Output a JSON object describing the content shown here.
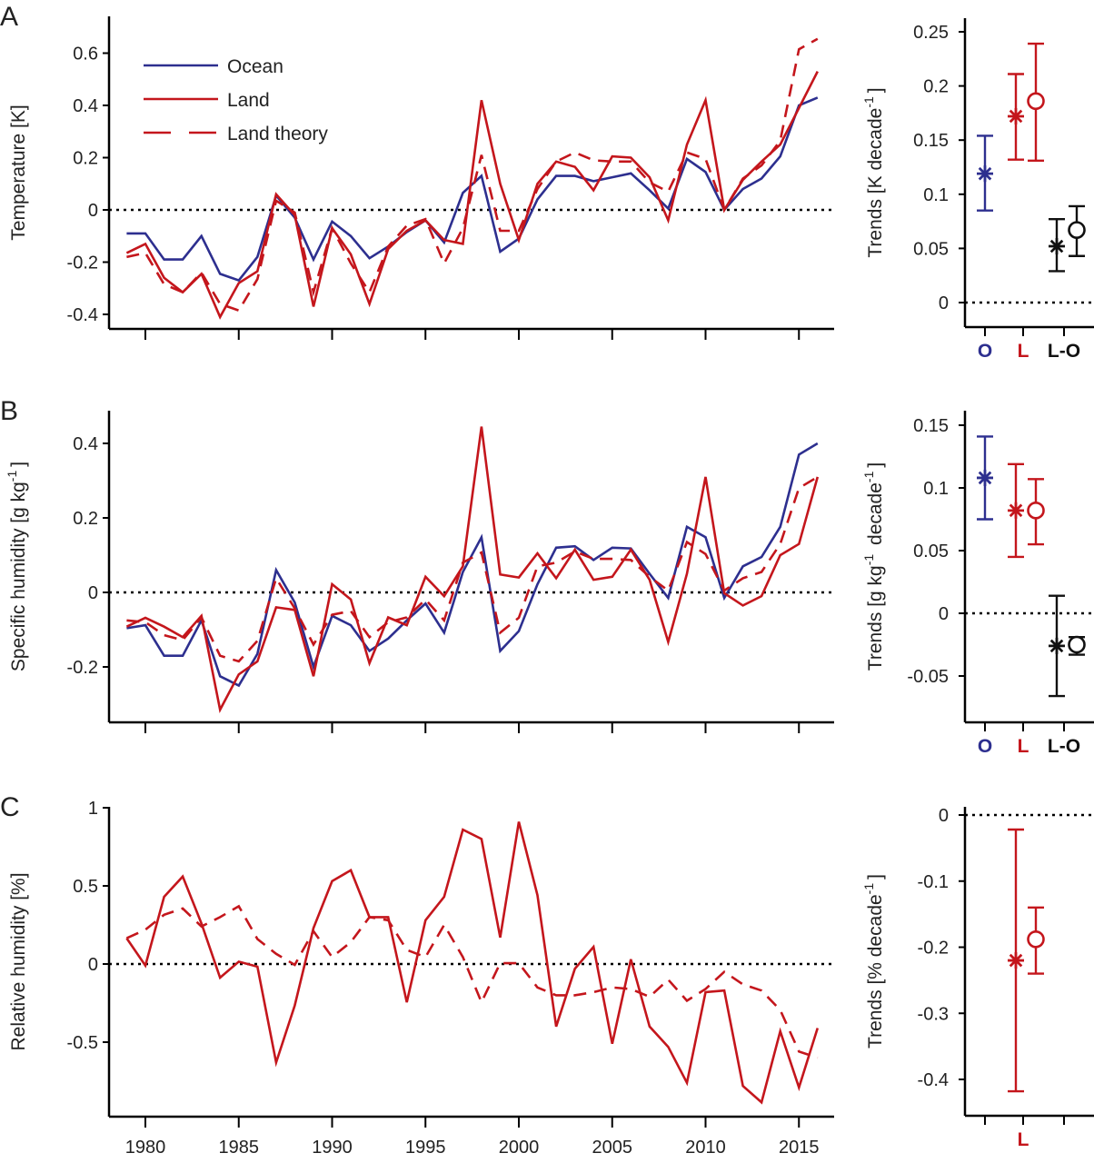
{
  "colors": {
    "ocean": "#2d2f8f",
    "land": "#c4161c",
    "difference": "#111111"
  },
  "panel_letters": [
    "A",
    "B",
    "C"
  ],
  "legend": [
    "Ocean",
    "Land",
    "Land theory"
  ],
  "chart_data": [
    {
      "type": "line",
      "panel": "A",
      "ylabel": "Temperature [K]",
      "ylim": [
        -0.45,
        0.7
      ],
      "yticks": [
        -0.4,
        -0.2,
        0,
        0.2,
        0.4,
        0.6
      ],
      "ytick_labels": [
        "-0.4",
        "-0.2",
        "0",
        "0.2",
        "0.4",
        "0.6"
      ],
      "xlim": [
        1978,
        2017
      ],
      "xticks": [
        1980,
        1985,
        1990,
        1995,
        2000,
        2005,
        2010,
        2015
      ],
      "reference_line": 0,
      "legend_position": "top-left",
      "x": [
        1979,
        1980,
        1981,
        1982,
        1983,
        1984,
        1985,
        1986,
        1987,
        1988,
        1989,
        1990,
        1991,
        1992,
        1993,
        1994,
        1995,
        1996,
        1997,
        1998,
        1999,
        2000,
        2001,
        2002,
        2003,
        2004,
        2005,
        2006,
        2007,
        2008,
        2009,
        2010,
        2011,
        2012,
        2013,
        2014,
        2015,
        2016
      ],
      "series": [
        {
          "name": "Ocean",
          "style": "solid",
          "color": "ocean",
          "values": [
            -0.09,
            -0.09,
            -0.19,
            -0.19,
            -0.1,
            -0.245,
            -0.27,
            -0.18,
            0.055,
            -0.03,
            -0.19,
            -0.045,
            -0.1,
            -0.185,
            -0.14,
            -0.085,
            -0.04,
            -0.125,
            0.065,
            0.13,
            -0.16,
            -0.11,
            0.04,
            0.13,
            0.13,
            0.11,
            0.125,
            0.14,
            0.075,
            0.005,
            0.195,
            0.145,
            0.0,
            0.08,
            0.12,
            0.205,
            0.4,
            0.43
          ]
        },
        {
          "name": "Land",
          "style": "solid",
          "color": "land",
          "values": [
            -0.165,
            -0.13,
            -0.26,
            -0.315,
            -0.245,
            -0.41,
            -0.28,
            -0.235,
            0.06,
            -0.02,
            -0.37,
            -0.07,
            -0.17,
            -0.36,
            -0.15,
            -0.08,
            -0.04,
            -0.115,
            -0.13,
            0.42,
            0.1,
            -0.115,
            0.1,
            0.185,
            0.165,
            0.075,
            0.205,
            0.2,
            0.125,
            -0.04,
            0.25,
            0.42,
            0.0,
            0.115,
            0.185,
            0.25,
            0.39,
            0.53
          ]
        },
        {
          "name": "Land theory",
          "style": "dashed",
          "color": "land",
          "values": [
            -0.18,
            -0.165,
            -0.285,
            -0.315,
            -0.24,
            -0.36,
            -0.385,
            -0.265,
            0.035,
            -0.01,
            -0.315,
            -0.07,
            -0.205,
            -0.315,
            -0.14,
            -0.06,
            -0.035,
            -0.205,
            -0.07,
            0.21,
            -0.08,
            -0.08,
            0.08,
            0.185,
            0.22,
            0.19,
            0.185,
            0.185,
            0.105,
            0.07,
            0.22,
            0.195,
            0.0,
            0.12,
            0.17,
            0.265,
            0.615,
            0.655
          ]
        }
      ]
    },
    {
      "type": "line",
      "panel": "B",
      "ylabel": "Specific humidity [g kg",
      "ylabel_sup": "-1",
      "ylabel_end": "]",
      "ylim": [
        -0.35,
        0.5
      ],
      "yticks": [
        -0.2,
        0,
        0.2,
        0.4
      ],
      "ytick_labels": [
        "-0.2",
        "0",
        "0.2",
        "0.4"
      ],
      "xlim": [
        1978,
        2017
      ],
      "xticks": [
        1980,
        1985,
        1990,
        1995,
        2000,
        2005,
        2010,
        2015
      ],
      "reference_line": 0,
      "x": [
        1979,
        1980,
        1981,
        1982,
        1983,
        1984,
        1985,
        1986,
        1987,
        1988,
        1989,
        1990,
        1991,
        1992,
        1993,
        1994,
        1995,
        1996,
        1997,
        1998,
        1999,
        2000,
        2001,
        2002,
        2003,
        2004,
        2005,
        2006,
        2007,
        2008,
        2009,
        2010,
        2011,
        2012,
        2013,
        2014,
        2015,
        2016
      ],
      "series": [
        {
          "name": "Ocean",
          "style": "solid",
          "color": "ocean",
          "values": [
            -0.096,
            -0.088,
            -0.17,
            -0.17,
            -0.075,
            -0.225,
            -0.25,
            -0.165,
            0.06,
            -0.027,
            -0.2,
            -0.063,
            -0.088,
            -0.157,
            -0.124,
            -0.075,
            -0.03,
            -0.108,
            0.055,
            0.148,
            -0.157,
            -0.104,
            0.022,
            0.12,
            0.124,
            0.087,
            0.12,
            0.118,
            0.05,
            -0.015,
            0.176,
            0.148,
            -0.015,
            0.07,
            0.095,
            0.176,
            0.37,
            0.4
          ]
        },
        {
          "name": "Land",
          "style": "solid",
          "color": "land",
          "values": [
            -0.092,
            -0.068,
            -0.092,
            -0.12,
            -0.063,
            -0.315,
            -0.22,
            -0.185,
            -0.04,
            -0.047,
            -0.225,
            0.022,
            -0.019,
            -0.19,
            -0.067,
            -0.088,
            0.042,
            -0.01,
            0.07,
            0.445,
            0.048,
            0.04,
            0.105,
            0.038,
            0.115,
            0.034,
            0.042,
            0.115,
            0.034,
            -0.133,
            0.05,
            0.31,
            -0.002,
            -0.035,
            -0.01,
            0.1,
            0.13,
            0.31
          ]
        },
        {
          "name": "Land theory",
          "style": "dashed",
          "color": "land",
          "values": [
            -0.075,
            -0.08,
            -0.115,
            -0.128,
            -0.067,
            -0.17,
            -0.185,
            -0.13,
            0.038,
            -0.043,
            -0.14,
            -0.06,
            -0.05,
            -0.12,
            -0.08,
            -0.067,
            -0.019,
            -0.075,
            0.08,
            0.107,
            -0.108,
            -0.068,
            0.07,
            0.08,
            0.11,
            0.09,
            0.09,
            0.087,
            0.042,
            0.005,
            0.135,
            0.103,
            0.005,
            0.038,
            0.055,
            0.13,
            0.28,
            0.31
          ]
        }
      ]
    },
    {
      "type": "line",
      "panel": "C",
      "ylabel": "Relative humidity [%]",
      "ylim": [
        -0.98,
        1.0
      ],
      "yticks": [
        -0.5,
        0,
        0.5,
        1
      ],
      "ytick_labels": [
        "-0.5",
        "0",
        "0.5",
        "1"
      ],
      "xlim": [
        1978,
        2017
      ],
      "xticks": [
        1980,
        1985,
        1990,
        1995,
        2000,
        2005,
        2010,
        2015
      ],
      "xtick_labels": [
        "1980",
        "1985",
        "1990",
        "1995",
        "2000",
        "2005",
        "2010",
        "2015"
      ],
      "reference_line": 0,
      "x": [
        1979,
        1980,
        1981,
        1982,
        1983,
        1984,
        1985,
        1986,
        1987,
        1988,
        1989,
        1990,
        1991,
        1992,
        1993,
        1994,
        1995,
        1996,
        1997,
        1998,
        1999,
        2000,
        2001,
        2002,
        2003,
        2004,
        2005,
        2006,
        2007,
        2008,
        2009,
        2010,
        2011,
        2012,
        2013,
        2014,
        2015,
        2016
      ],
      "series": [
        {
          "name": "Land",
          "style": "solid",
          "color": "land",
          "values": [
            0.165,
            -0.01,
            0.43,
            0.56,
            0.26,
            -0.087,
            0.015,
            -0.017,
            -0.63,
            -0.265,
            0.23,
            0.53,
            0.6,
            0.3,
            0.3,
            -0.245,
            0.28,
            0.43,
            0.86,
            0.8,
            0.17,
            0.91,
            0.44,
            -0.4,
            -0.03,
            0.11,
            -0.51,
            0.03,
            -0.4,
            -0.53,
            -0.76,
            -0.18,
            -0.17,
            -0.78,
            -0.885,
            -0.43,
            -0.79,
            -0.41
          ]
        },
        {
          "name": "Land theory",
          "style": "dashed",
          "color": "land",
          "values": [
            0.165,
            0.22,
            0.315,
            0.355,
            0.24,
            0.3,
            0.37,
            0.16,
            0.065,
            -0.005,
            0.21,
            0.045,
            0.14,
            0.3,
            0.28,
            0.09,
            0.045,
            0.25,
            0.045,
            -0.245,
            0.005,
            0.005,
            -0.15,
            -0.2,
            -0.2,
            -0.18,
            -0.15,
            -0.16,
            -0.21,
            -0.1,
            -0.235,
            -0.16,
            -0.05,
            -0.13,
            -0.17,
            -0.295,
            -0.56,
            -0.6
          ]
        }
      ]
    },
    {
      "type": "errorbar",
      "panel": "A",
      "ylabel": "Trends [K decade",
      "ylabel_sup": "-1",
      "ylabel_end": "]",
      "ylim": [
        -0.02,
        0.26
      ],
      "yticks": [
        0,
        0.05,
        0.1,
        0.15,
        0.2,
        0.25
      ],
      "ytick_labels": [
        "0",
        "0.05",
        "0.1",
        "0.15",
        "0.2",
        "0.25"
      ],
      "categories": [
        "O",
        "L",
        "L-O"
      ],
      "category_colors": [
        "ocean",
        "land",
        "difference"
      ],
      "reference_line": 0,
      "points": [
        {
          "category": "O",
          "marker": "star",
          "color": "ocean",
          "value": 0.119,
          "low": 0.085,
          "high": 0.154
        },
        {
          "category": "L",
          "marker": "star",
          "color": "land",
          "value": 0.172,
          "low": 0.132,
          "high": 0.211
        },
        {
          "category": "L",
          "marker": "circle",
          "color": "land",
          "value": 0.186,
          "low": 0.131,
          "high": 0.239
        },
        {
          "category": "L-O",
          "marker": "star",
          "color": "difference",
          "value": 0.052,
          "low": 0.029,
          "high": 0.077
        },
        {
          "category": "L-O",
          "marker": "circle",
          "color": "difference",
          "value": 0.067,
          "low": 0.043,
          "high": 0.089
        }
      ]
    },
    {
      "type": "errorbar",
      "panel": "B",
      "ylabel": "Trends [g kg",
      "ylabel_sup": "-1",
      "ylabel_mid": " decade",
      "ylabel_sup2": "-1",
      "ylabel_end": "]",
      "ylim": [
        -0.087,
        0.16
      ],
      "yticks": [
        -0.05,
        0,
        0.05,
        0.1,
        0.15
      ],
      "ytick_labels": [
        "-0.05",
        "0",
        "0.05",
        "0.1",
        "0.15"
      ],
      "categories": [
        "O",
        "L",
        "L-O"
      ],
      "category_colors": [
        "ocean",
        "land",
        "difference"
      ],
      "reference_line": 0,
      "points": [
        {
          "category": "O",
          "marker": "star",
          "color": "ocean",
          "value": 0.108,
          "low": 0.075,
          "high": 0.141
        },
        {
          "category": "L",
          "marker": "star",
          "color": "land",
          "value": 0.082,
          "low": 0.045,
          "high": 0.119
        },
        {
          "category": "L",
          "marker": "circle",
          "color": "land",
          "value": 0.082,
          "low": 0.055,
          "high": 0.107
        },
        {
          "category": "L-O",
          "marker": "star",
          "color": "difference",
          "value": -0.026,
          "low": -0.066,
          "high": 0.014
        },
        {
          "category": "L-O",
          "marker": "circle",
          "color": "difference",
          "value": -0.025,
          "low": -0.033,
          "high": -0.019
        }
      ]
    },
    {
      "type": "errorbar",
      "panel": "C",
      "ylabel": "Trends [% decade",
      "ylabel_sup": "-1",
      "ylabel_end": "]",
      "ylim": [
        -0.455,
        0.012
      ],
      "yticks": [
        -0.4,
        -0.3,
        -0.2,
        -0.1,
        0
      ],
      "ytick_labels": [
        "-0.4",
        "-0.3",
        "-0.2",
        "-0.1",
        "0"
      ],
      "categories": [
        "",
        "L",
        ""
      ],
      "category_colors": [
        "ocean",
        "land",
        "difference"
      ],
      "reference_line": 0,
      "points": [
        {
          "category": "L",
          "marker": "star",
          "color": "land",
          "value": -0.22,
          "low": -0.418,
          "high": -0.022
        },
        {
          "category": "L",
          "marker": "circle",
          "color": "land",
          "value": -0.188,
          "low": -0.24,
          "high": -0.14
        }
      ]
    }
  ]
}
